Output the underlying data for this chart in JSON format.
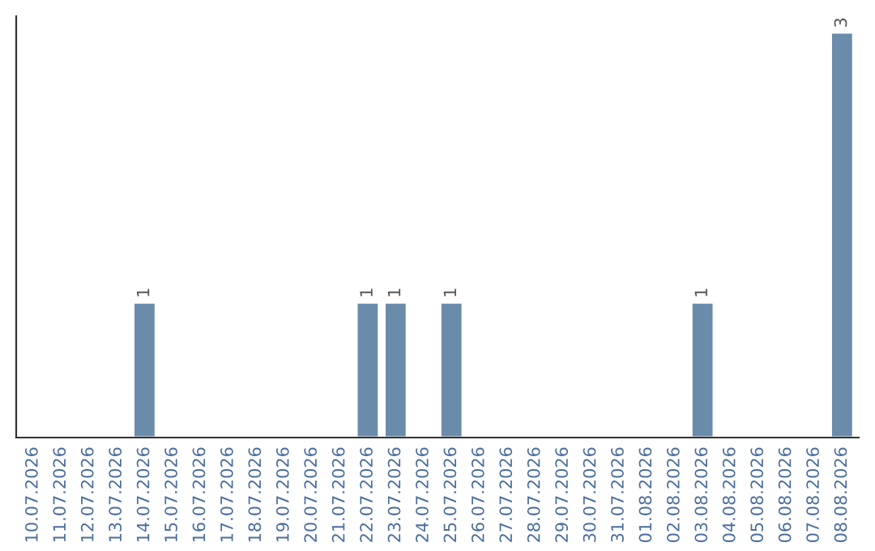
{
  "chart_data": {
    "type": "bar",
    "categories": [
      "10.07.2026",
      "11.07.2026",
      "12.07.2026",
      "13.07.2026",
      "14.07.2026",
      "15.07.2026",
      "16.07.2026",
      "17.07.2026",
      "18.07.2026",
      "19.07.2026",
      "20.07.2026",
      "21.07.2026",
      "22.07.2026",
      "23.07.2026",
      "24.07.2026",
      "25.07.2026",
      "26.07.2026",
      "27.07.2026",
      "28.07.2026",
      "29.07.2026",
      "30.07.2026",
      "31.07.2026",
      "01.08.2026",
      "02.08.2026",
      "03.08.2026",
      "04.08.2026",
      "05.08.2026",
      "06.08.2026",
      "07.08.2026",
      "08.08.2026"
    ],
    "values": [
      0,
      0,
      0,
      0,
      1,
      0,
      0,
      0,
      0,
      0,
      0,
      0,
      1,
      1,
      0,
      1,
      0,
      0,
      0,
      0,
      0,
      0,
      0,
      0,
      1,
      0,
      0,
      0,
      0,
      3
    ],
    "value_labels": [
      null,
      null,
      null,
      null,
      "1",
      null,
      null,
      null,
      null,
      null,
      null,
      null,
      "1",
      "1",
      null,
      "1",
      null,
      null,
      null,
      null,
      null,
      null,
      null,
      null,
      "1",
      null,
      null,
      null,
      null,
      "3"
    ],
    "color": "#6b8bab",
    "tick_labels": "x",
    "grid": false,
    "legend": false
  }
}
